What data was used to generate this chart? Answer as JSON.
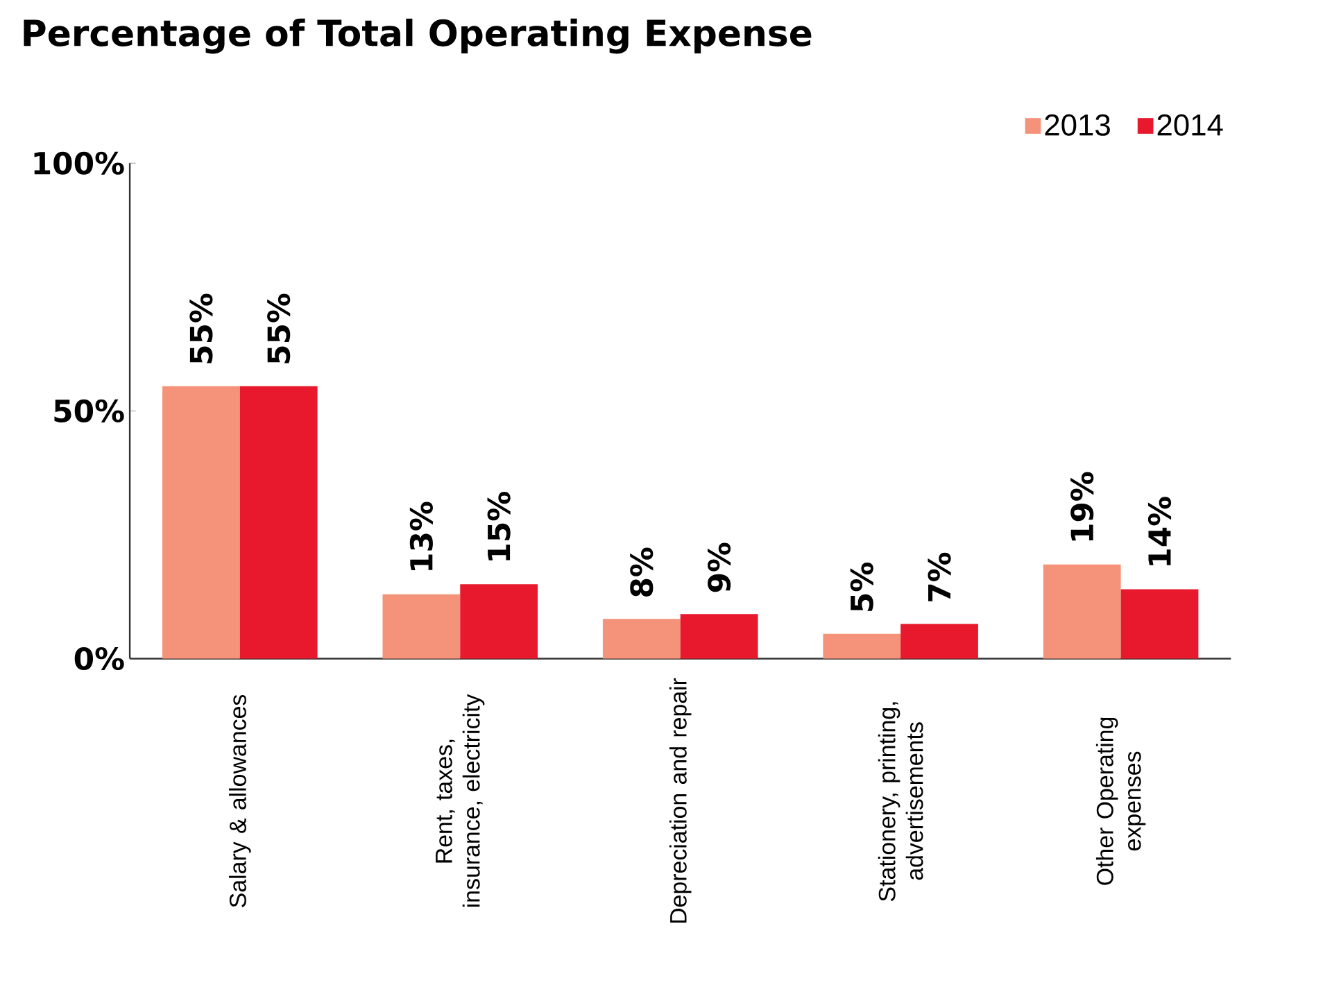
{
  "chart_data": {
    "type": "bar",
    "title": "Percentage of Total Operating Expense",
    "categories": [
      "Salary & allowances",
      "Rent, taxes, insurance, electricity",
      "Depreciation and repair",
      "Stationery, printing, advertisements",
      "Other Operating expenses"
    ],
    "series": [
      {
        "name": "2013",
        "color": "#f4937a",
        "values": [
          55,
          13,
          8,
          5,
          19
        ],
        "value_labels": [
          "55%",
          "13%",
          "8%",
          "5%",
          "19%"
        ]
      },
      {
        "name": "2014",
        "color": "#e8192c",
        "values": [
          55,
          15,
          9,
          7,
          14
        ],
        "value_labels": [
          "55%",
          "15%",
          "9%",
          "7%",
          "14%"
        ]
      }
    ],
    "ylim": [
      0,
      100
    ],
    "yticks": [
      {
        "value": 0,
        "label": "0%"
      },
      {
        "value": 50,
        "label": "50%"
      },
      {
        "value": 100,
        "label": "100%"
      }
    ],
    "legend": "top right",
    "grid": false
  }
}
